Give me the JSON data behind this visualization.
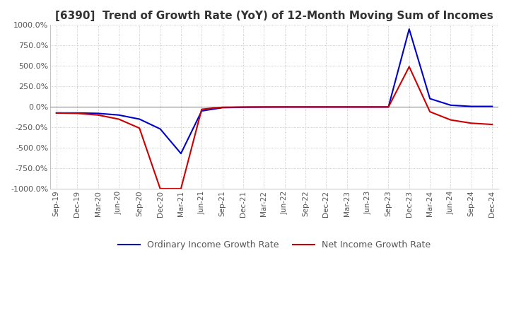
{
  "title": "[6390]  Trend of Growth Rate (YoY) of 12-Month Moving Sum of Incomes",
  "title_fontsize": 11,
  "ylim": [
    -1000,
    1000
  ],
  "yticks": [
    -1000,
    -750,
    -500,
    -250,
    0,
    250,
    500,
    750,
    1000
  ],
  "ytick_labels": [
    "-1000.0%",
    "-750.0%",
    "-500.0%",
    "-250.0%",
    "0.0%",
    "250.0%",
    "500.0%",
    "750.0%",
    "1000.0%"
  ],
  "background_color": "#ffffff",
  "grid_color": "#bbbbbb",
  "x_labels": [
    "Sep-19",
    "Dec-19",
    "Mar-20",
    "Jun-20",
    "Sep-20",
    "Dec-20",
    "Mar-21",
    "Jun-21",
    "Sep-21",
    "Dec-21",
    "Mar-22",
    "Jun-22",
    "Sep-22",
    "Dec-22",
    "Mar-23",
    "Jun-23",
    "Sep-23",
    "Dec-23",
    "Mar-24",
    "Jun-24",
    "Sep-24",
    "Dec-24"
  ],
  "ordinary_income": [
    -75,
    -75,
    -80,
    -100,
    -150,
    -270,
    -570,
    -50,
    -10,
    -5,
    -3,
    -2,
    -2,
    -2,
    -2,
    -2,
    -2,
    950,
    100,
    20,
    5,
    5
  ],
  "net_income": [
    -75,
    -80,
    -100,
    -150,
    -260,
    -1000,
    -1000,
    -30,
    -5,
    -3,
    -2,
    -2,
    -2,
    -2,
    -2,
    -2,
    -2,
    490,
    -60,
    -160,
    -200,
    -215
  ],
  "ordinary_color": "#0000cc",
  "net_color": "#cc0000",
  "legend_labels": [
    "Ordinary Income Growth Rate",
    "Net Income Growth Rate"
  ]
}
